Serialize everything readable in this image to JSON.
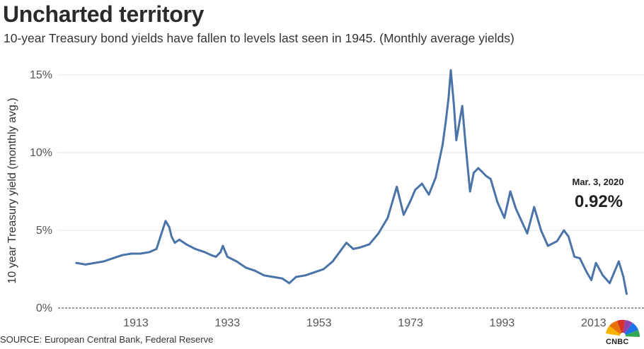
{
  "title": "Uncharted territory",
  "subtitle": "10-year Treasury bond yields have fallen to levels last seen in 1945. (Monthly average yields)",
  "source": "SOURCE: European Central Bank, Federal Reserve",
  "brand": "CNBC",
  "colors": {
    "line": "#4a74a8",
    "grid": "#e6e6e6",
    "axis": "#333333"
  },
  "chart_data": {
    "type": "line",
    "title": "Uncharted territory",
    "xlabel": "",
    "ylabel": "10 year Treasury yield (monthly avg.)",
    "xlim": [
      1896,
      2024
    ],
    "ylim": [
      0,
      16
    ],
    "yticks": [
      0,
      5,
      10,
      15
    ],
    "ytick_labels": [
      "0%",
      "5%",
      "10%",
      "15%"
    ],
    "xticks": [
      1913,
      1933,
      1953,
      1973,
      1993,
      2013
    ],
    "xtick_labels": [
      "1913",
      "1933",
      "1953",
      "1973",
      "1993",
      "2013"
    ],
    "grid": true,
    "series": [
      {
        "name": "10-year Treasury yield",
        "x": [
          1900,
          1902,
          1904,
          1906,
          1908,
          1910,
          1912,
          1914,
          1916,
          1917.5,
          1918.5,
          1919.5,
          1920.3,
          1920.8,
          1921.5,
          1922.5,
          1924,
          1926,
          1928,
          1929.5,
          1930.5,
          1931.5,
          1932,
          1933,
          1935,
          1937,
          1939,
          1941,
          1943,
          1945,
          1946.5,
          1948,
          1950,
          1952,
          1954,
          1956,
          1957.5,
          1959,
          1960.5,
          1962,
          1964,
          1966,
          1968,
          1970,
          1971.5,
          1973,
          1974,
          1975.5,
          1977,
          1978.5,
          1980,
          1980.7,
          1981.3,
          1981.8,
          1982.5,
          1983,
          1984.3,
          1985,
          1986,
          1986.8,
          1987.8,
          1988.5,
          1989.5,
          1990.5,
          1992,
          1993.5,
          1994.8,
          1996,
          1998.5,
          2000,
          2001.5,
          2003,
          2005,
          2006.5,
          2007.5,
          2008.8,
          2010,
          2011.5,
          2012.5,
          2013.5,
          2015,
          2016.5,
          2018.5,
          2019.5,
          2020.2
        ],
        "values": [
          2.9,
          2.8,
          2.9,
          3.0,
          3.2,
          3.4,
          3.5,
          3.5,
          3.6,
          3.8,
          4.7,
          5.6,
          5.2,
          4.6,
          4.2,
          4.4,
          4.1,
          3.8,
          3.6,
          3.4,
          3.3,
          3.6,
          4.0,
          3.3,
          3.0,
          2.6,
          2.4,
          2.1,
          2.0,
          1.9,
          1.6,
          2.0,
          2.1,
          2.3,
          2.5,
          3.0,
          3.6,
          4.2,
          3.8,
          3.9,
          4.1,
          4.8,
          5.8,
          7.8,
          6.0,
          6.9,
          7.6,
          8.0,
          7.3,
          8.4,
          10.5,
          12.0,
          13.5,
          15.3,
          13.0,
          10.8,
          13.0,
          10.6,
          7.5,
          8.7,
          9.0,
          8.8,
          8.5,
          8.3,
          6.8,
          5.8,
          7.5,
          6.4,
          4.8,
          6.5,
          5.0,
          4.0,
          4.3,
          5.0,
          4.6,
          3.3,
          3.2,
          2.3,
          1.8,
          2.9,
          2.1,
          1.6,
          3.0,
          2.0,
          0.92
        ]
      }
    ],
    "annotation": {
      "date": "Mar. 3, 2020",
      "value": "0.92%"
    }
  }
}
